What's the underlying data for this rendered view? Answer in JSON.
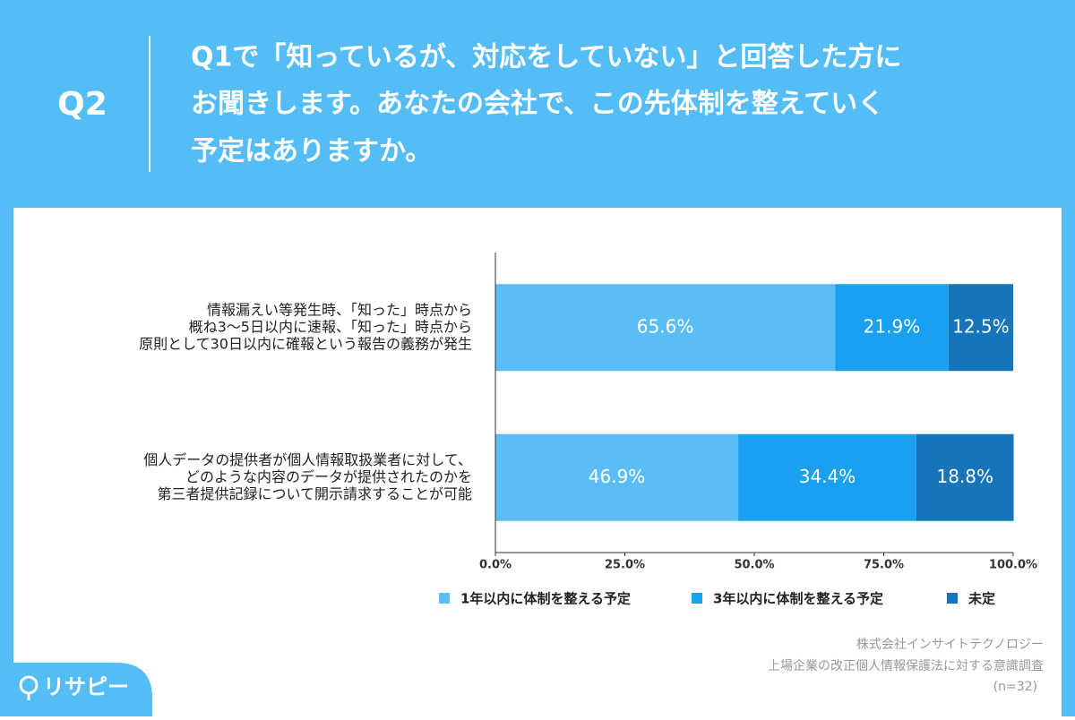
{
  "header": {
    "label": "Q2",
    "question_lines": [
      "Q1で「知っているが、対応をしていない」と回答した方に",
      "お聞きします。あなたの会社で、この先体制を整えていく",
      "予定はありますか。"
    ]
  },
  "chart_data": {
    "type": "bar",
    "orientation": "horizontal",
    "stacked": true,
    "categories": [
      [
        "情報漏えい等発生時、「知った」時点から",
        "概ね3〜5日以内に速報、「知った」時点から",
        "原則として30日以内に確報という報告の義務が発生"
      ],
      [
        "個人データの提供者が個人情報取扱業者に対して、",
        "どのような内容のデータが提供されたのかを",
        "第三者提供記録について開示請求することが可能"
      ]
    ],
    "series": [
      {
        "name": "1年以内に体制を整える予定",
        "color": "#5bbdf5",
        "values": [
          65.6,
          46.9
        ],
        "value_labels": [
          "65.6%",
          "46.9%"
        ]
      },
      {
        "name": "3年以内に体制を整える予定",
        "color": "#1aa0f0",
        "values": [
          21.9,
          34.4
        ],
        "value_labels": [
          "21.9%",
          "34.4%"
        ]
      },
      {
        "name": "未定",
        "color": "#1675ba",
        "values": [
          12.5,
          18.8
        ],
        "value_labels": [
          "12.5%",
          "18.8%"
        ]
      }
    ],
    "xlim": [
      0,
      100
    ],
    "xticks": [
      {
        "value": 0,
        "label": "0.0%"
      },
      {
        "value": 25,
        "label": "25.0%"
      },
      {
        "value": 50,
        "label": "50.0%"
      },
      {
        "value": 75,
        "label": "75.0%"
      },
      {
        "value": 100,
        "label": "100.0%"
      }
    ],
    "legend": "bottom"
  },
  "footer": {
    "company": "株式会社インサイトテクノロジー",
    "survey": "上場企業の改正個人情報保護法に対する意識調査",
    "sample": "(n=32)",
    "logo": "リサピー"
  }
}
